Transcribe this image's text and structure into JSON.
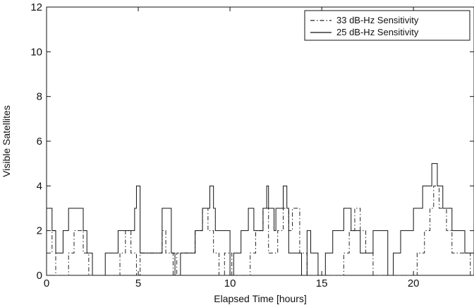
{
  "chart_data": {
    "type": "line",
    "title": "",
    "xlabel": "Elapsed Time [hours]",
    "ylabel": "Visible Satellites",
    "xlim": [
      0,
      23.3
    ],
    "ylim": [
      0,
      12
    ],
    "xticks": [
      0,
      5,
      10,
      15,
      20
    ],
    "yticks": [
      0,
      2,
      4,
      6,
      8,
      10,
      12
    ],
    "grid": false,
    "legend_position": "top-right",
    "series": [
      {
        "name": "33 dB-Hz Sensitivity",
        "style": "dash-dot",
        "color": "#222222",
        "x": [
          0,
          0.3,
          0.5,
          1.2,
          1.5,
          2.0,
          2.3,
          4.0,
          4.3,
          4.6,
          4.9,
          5.1,
          6.3,
          6.5,
          6.9,
          7.1,
          8.1,
          8.5,
          8.8,
          9.1,
          9.4,
          9.7,
          10.1,
          11.1,
          11.4,
          11.8,
          12.1,
          12.6,
          12.9,
          13.2,
          13.4,
          13.8,
          14.2,
          16.2,
          16.5,
          16.8,
          17.1,
          17.4,
          17.8,
          20.2,
          20.6,
          20.9,
          21.1,
          21.4,
          21.8,
          22.1,
          23.1,
          23.3
        ],
        "y": [
          1,
          2,
          0,
          1,
          2,
          1,
          0,
          1,
          2,
          1,
          0,
          1,
          2,
          1,
          0,
          1,
          2,
          3,
          2,
          1,
          0,
          1,
          0,
          1,
          2,
          3,
          1,
          2,
          3,
          2,
          3,
          1,
          0,
          1,
          2,
          3,
          2,
          1,
          0,
          1,
          2,
          3,
          4,
          3,
          2,
          1,
          0,
          1
        ]
      },
      {
        "name": "25 dB-Hz Sensitivity",
        "style": "solid",
        "color": "#111111",
        "x": [
          0,
          0.3,
          0.5,
          0.9,
          1.2,
          2.0,
          2.2,
          2.5,
          3.2,
          3.9,
          4.8,
          4.9,
          5.1,
          6.3,
          6.8,
          7.0,
          7.3,
          8.1,
          8.5,
          8.9,
          9.1,
          9.2,
          10.0,
          10.2,
          10.6,
          11.0,
          11.3,
          11.8,
          12.0,
          12.1,
          12.4,
          12.5,
          12.9,
          13.1,
          13.2,
          13.9,
          14.2,
          14.4,
          14.8,
          15.2,
          15.6,
          16.2,
          16.6,
          17.1,
          17.8,
          18.6,
          18.9,
          19.3,
          20.0,
          20.5,
          21.0,
          21.3,
          21.6,
          22.1,
          22.8,
          23.3
        ],
        "y": [
          3,
          2,
          1,
          2,
          3,
          2,
          1,
          0,
          1,
          2,
          3,
          4,
          1,
          3,
          1,
          0,
          1,
          2,
          3,
          4,
          3,
          2,
          0,
          1,
          2,
          3,
          2,
          3,
          4,
          3,
          2,
          3,
          4,
          3,
          1,
          0,
          2,
          1,
          0,
          1,
          2,
          3,
          2,
          1,
          2,
          0,
          1,
          2,
          3,
          4,
          5,
          4,
          3,
          2,
          1,
          3
        ]
      }
    ]
  }
}
